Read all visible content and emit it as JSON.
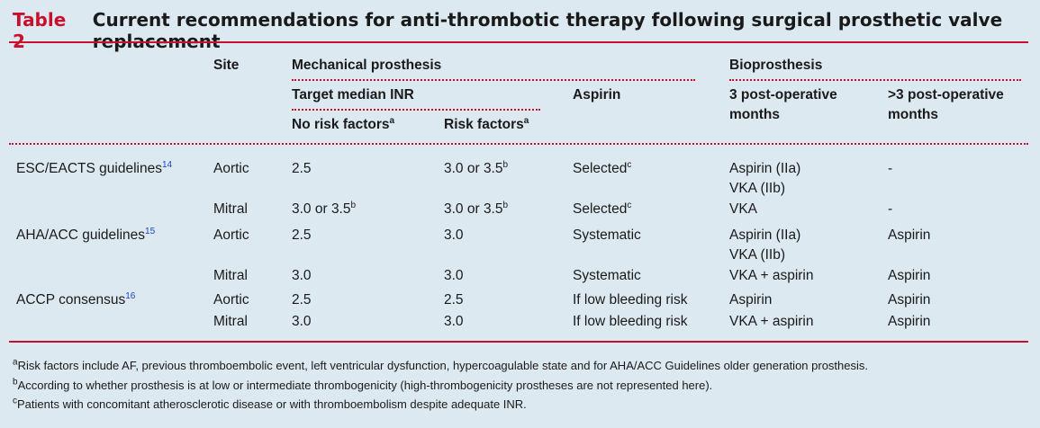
{
  "title": {
    "label": "Table 2",
    "text": "Current recommendations for anti-thrombotic therapy following surgical prosthetic valve replacement"
  },
  "headers": {
    "site": "Site",
    "mechanical": "Mechanical prosthesis",
    "bioprosthesis": "Bioprosthesis",
    "target_inr": "Target median INR",
    "aspirin": "Aspirin",
    "bio_3": "3 post-operative",
    "bio_3_line2": "months",
    "bio_gt3": ">3 post-operative",
    "bio_gt3_line2": "months",
    "no_risk": "No risk factors",
    "no_risk_sup": "a",
    "risk": "Risk factors",
    "risk_sup": "a"
  },
  "rows": [
    {
      "source": "ESC/EACTS guidelines",
      "ref": "14",
      "site": "Aortic",
      "no_risk": "2.5",
      "no_risk_sup": "",
      "risk": "3.0 or 3.5",
      "risk_sup": "b",
      "aspirin": "Selected",
      "aspirin_sup": "c",
      "bio3": "Aspirin (IIa)",
      "bio3_line2": "VKA (IIb)",
      "bio_gt3": "-"
    },
    {
      "source": "",
      "ref": "",
      "site": "Mitral",
      "no_risk": "3.0 or 3.5",
      "no_risk_sup": "b",
      "risk": "3.0 or 3.5",
      "risk_sup": "b",
      "aspirin": "Selected",
      "aspirin_sup": "c",
      "bio3": "VKA",
      "bio3_line2": "",
      "bio_gt3": "-"
    },
    {
      "source": "AHA/ACC guidelines",
      "ref": "15",
      "site": "Aortic",
      "no_risk": "2.5",
      "no_risk_sup": "",
      "risk": "3.0",
      "risk_sup": "",
      "aspirin": "Systematic",
      "aspirin_sup": "",
      "bio3": "Aspirin (IIa)",
      "bio3_line2": "VKA (IIb)",
      "bio_gt3": "Aspirin"
    },
    {
      "source": "",
      "ref": "",
      "site": "Mitral",
      "no_risk": "3.0",
      "no_risk_sup": "",
      "risk": "3.0",
      "risk_sup": "",
      "aspirin": "Systematic",
      "aspirin_sup": "",
      "bio3": "VKA + aspirin",
      "bio3_line2": "",
      "bio_gt3": "Aspirin"
    },
    {
      "source": "ACCP consensus",
      "ref": "16",
      "site": "Aortic",
      "no_risk": "2.5",
      "no_risk_sup": "",
      "risk": "2.5",
      "risk_sup": "",
      "aspirin": "If low bleeding risk",
      "aspirin_sup": "",
      "bio3": "Aspirin",
      "bio3_line2": "",
      "bio_gt3": "Aspirin"
    },
    {
      "source": "",
      "ref": "",
      "site": "Mitral",
      "no_risk": "3.0",
      "no_risk_sup": "",
      "risk": "3.0",
      "risk_sup": "",
      "aspirin": "If low bleeding risk",
      "aspirin_sup": "",
      "bio3": "VKA + aspirin",
      "bio3_line2": "",
      "bio_gt3": "Aspirin"
    }
  ],
  "footnotes": [
    {
      "mark": "a",
      "text": "Risk factors include AF, previous thromboembolic event, left ventricular dysfunction, hypercoagulable state and for AHA/ACC Guidelines older generation prosthesis."
    },
    {
      "mark": "b",
      "text": "According to whether prosthesis is at low or intermediate thrombogenicity (high-thrombogenicity prostheses are not represented here)."
    },
    {
      "mark": "c",
      "text": "Patients with concomitant atherosclerotic disease or with thromboembolism despite adequate INR."
    }
  ],
  "colors": {
    "accent": "#c8102e",
    "background": "#dde9f1",
    "ref_link": "#1a44c8"
  }
}
